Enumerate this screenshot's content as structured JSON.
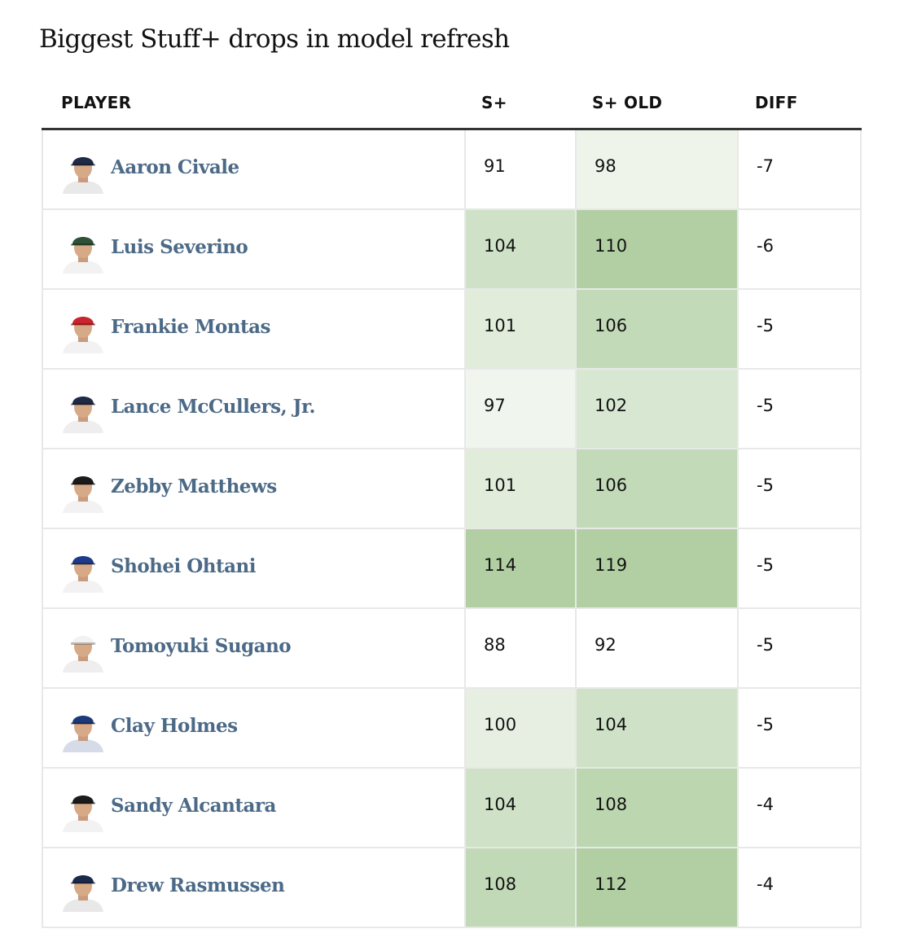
{
  "chart_data": {
    "type": "table",
    "title": "Biggest Stuff+ drops in model refresh",
    "columns": [
      "PLAYER",
      "S+",
      "S+ OLD",
      "DIFF"
    ],
    "rows": [
      {
        "player": "Aaron Civale",
        "s_plus": 91,
        "s_plus_old": 98,
        "diff": "-7",
        "cap": "#1f2a44",
        "jersey": "#e9e9e9",
        "splus_bg": "#ffffff",
        "sold_bg": "#eef4ea"
      },
      {
        "player": "Luis Severino",
        "s_plus": 104,
        "s_plus_old": 110,
        "diff": "-6",
        "cap": "#2f5135",
        "jersey": "#f2f2f2",
        "splus_bg": "#cfe2c7",
        "sold_bg": "#b2cfa3"
      },
      {
        "player": "Frankie Montas",
        "s_plus": 101,
        "s_plus_old": 106,
        "diff": "-5",
        "cap": "#c8262c",
        "jersey": "#f2f2f2",
        "splus_bg": "#e1ecdb",
        "sold_bg": "#c3dab8"
      },
      {
        "player": "Lance McCullers, Jr.",
        "s_plus": 97,
        "s_plus_old": 102,
        "diff": "-5",
        "cap": "#1f2a44",
        "jersey": "#eeeeee",
        "splus_bg": "#f0f5ed",
        "sold_bg": "#d8e7d1"
      },
      {
        "player": "Zebby Matthews",
        "s_plus": 101,
        "s_plus_old": 106,
        "diff": "-5",
        "cap": "#1b1b1b",
        "jersey": "#f2f2f2",
        "splus_bg": "#e1ecdb",
        "sold_bg": "#c3dab8"
      },
      {
        "player": "Shohei Ohtani",
        "s_plus": 114,
        "s_plus_old": 119,
        "diff": "-5",
        "cap": "#1e3a8a",
        "jersey": "#f2f2f2",
        "splus_bg": "#b2cfa3",
        "sold_bg": "#b2cfa3"
      },
      {
        "player": "Tomoyuki Sugano",
        "s_plus": 88,
        "s_plus_old": 92,
        "diff": "-5",
        "cap": "#f2f2f2",
        "jersey": "#eeeeee",
        "splus_bg": "#ffffff",
        "sold_bg": "#ffffff"
      },
      {
        "player": "Clay Holmes",
        "s_plus": 100,
        "s_plus_old": 104,
        "diff": "-5",
        "cap": "#1c3a7a",
        "jersey": "#d6dbe8",
        "splus_bg": "#e6efe1",
        "sold_bg": "#cfe2c7"
      },
      {
        "player": "Sandy Alcantara",
        "s_plus": 104,
        "s_plus_old": 108,
        "diff": "-4",
        "cap": "#1b1b1b",
        "jersey": "#f2f2f2",
        "splus_bg": "#cfe2c7",
        "sold_bg": "#bcd6b0"
      },
      {
        "player": "Drew Rasmussen",
        "s_plus": 108,
        "s_plus_old": 112,
        "diff": "-4",
        "cap": "#1b2a4a",
        "jersey": "#e8e8e8",
        "splus_bg": "#c1d9b6",
        "sold_bg": "#b2cfa3"
      }
    ]
  }
}
